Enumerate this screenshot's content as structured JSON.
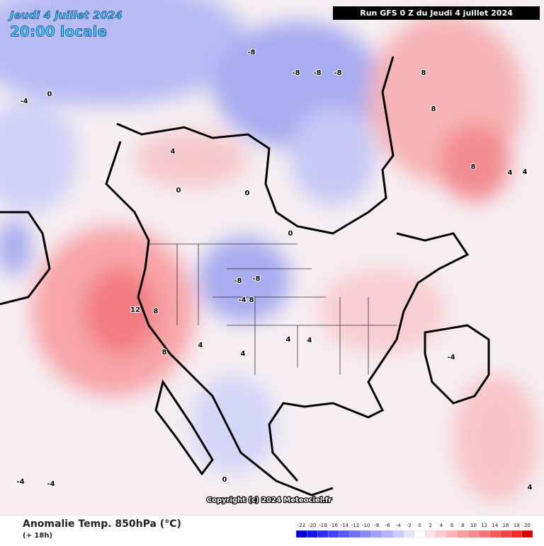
{
  "header": {
    "date": "Jeudi 4 juillet 2024",
    "time": "20:00 locale",
    "run": "Run GFS 0 Z du Jeudi 4 juillet 2024"
  },
  "footer": {
    "title": "Anomalie Temp. 850hPa (°C)",
    "lead": "(+ 18h)",
    "copyright": "Copyright (c) 2024 Meteociel.fr"
  },
  "colorbar": {
    "ticks": [
      -22,
      -20,
      -18,
      -16,
      -14,
      -12,
      -10,
      -8,
      -6,
      -4,
      -2,
      0,
      2,
      4,
      6,
      8,
      10,
      12,
      14,
      16,
      18,
      20
    ],
    "colors": [
      "#0000e0",
      "#1414f0",
      "#2a2af5",
      "#4040f8",
      "#5858fa",
      "#7070fb",
      "#8888fc",
      "#9e9efc",
      "#b4b4fd",
      "#cacafe",
      "#e4e4ff",
      "#ffffff",
      "#ffe4e4",
      "#fecaca",
      "#fdb4b4",
      "#fc9e9e",
      "#fc8888",
      "#fb7070",
      "#fa5858",
      "#f84040",
      "#f52a2a",
      "#e00000"
    ]
  },
  "contour_labels": [
    12,
    8,
    8,
    -8,
    -8,
    -4,
    8,
    4,
    0,
    0,
    0,
    8,
    8,
    8,
    4,
    4,
    -8,
    -8,
    -8,
    -8,
    0,
    -4,
    4,
    4,
    4,
    4,
    -4,
    -4,
    -4,
    0,
    4
  ]
}
